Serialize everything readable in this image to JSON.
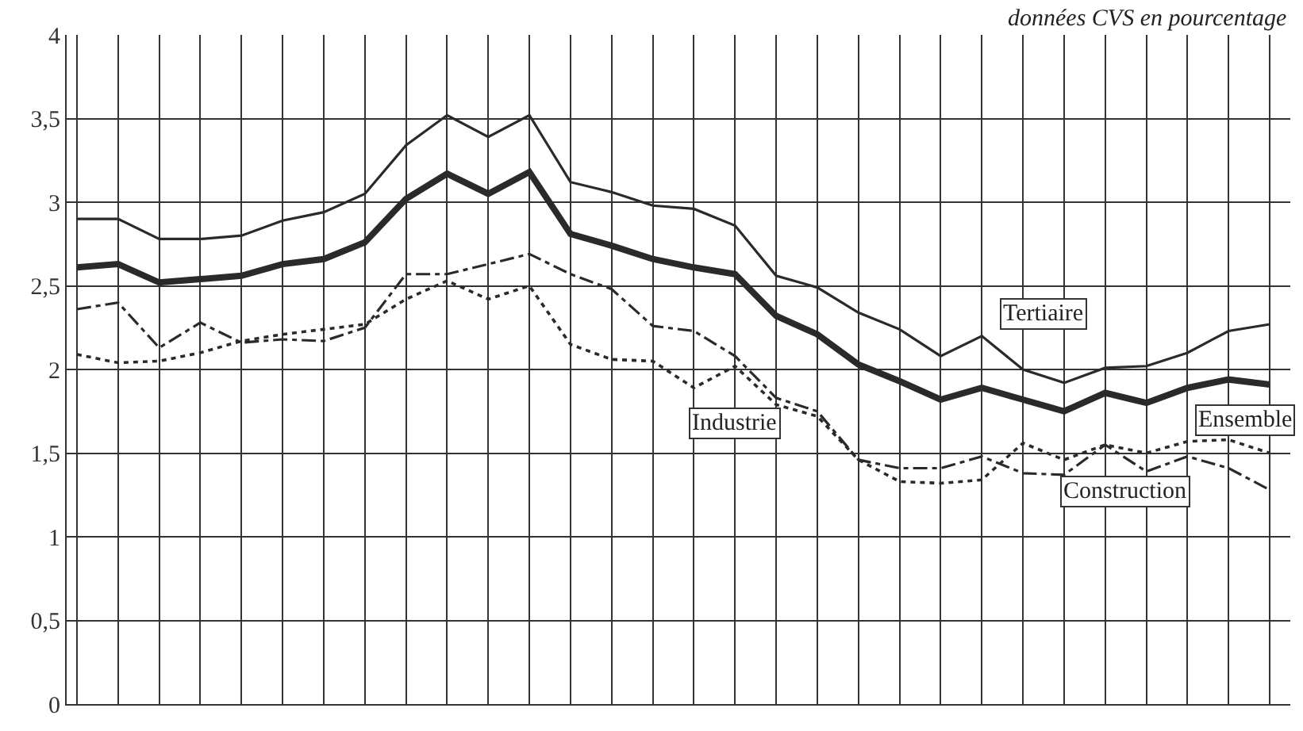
{
  "chart_data": {
    "type": "line",
    "subtitle": "données CVS en pourcentage",
    "categories": [
      null,
      null,
      null,
      null,
      null,
      null,
      null,
      null,
      null,
      null,
      null,
      null,
      null,
      null,
      null,
      null,
      null,
      null,
      null,
      null,
      null,
      null,
      null,
      null,
      null,
      null,
      null,
      null,
      null,
      null
    ],
    "series": [
      {
        "name": "Tertiaire",
        "color": "#2a2a2a",
        "line_style": "solid",
        "values": [
          2.9,
          2.9,
          2.78,
          2.78,
          2.8,
          2.89,
          2.94,
          3.05,
          3.34,
          3.52,
          3.39,
          3.52,
          3.12,
          3.06,
          2.98,
          2.96,
          2.86,
          2.56,
          2.49,
          2.34,
          2.24,
          2.08,
          2.2,
          2.0,
          1.92,
          2.01,
          2.02,
          2.1,
          2.23,
          2.27
        ]
      },
      {
        "name": "Ensemble",
        "color": "#2a2a2a",
        "line_style": "solid",
        "values": [
          2.61,
          2.63,
          2.52,
          2.54,
          2.56,
          2.63,
          2.66,
          2.76,
          3.02,
          3.17,
          3.05,
          3.18,
          2.81,
          2.74,
          2.66,
          2.61,
          2.57,
          2.32,
          2.21,
          2.03,
          1.93,
          1.82,
          1.89,
          1.82,
          1.75,
          1.86,
          1.8,
          1.89,
          1.94,
          1.91
        ]
      },
      {
        "name": "Industrie",
        "color": "#2a2a2a",
        "line_style": "dashed",
        "values": [
          2.36,
          2.4,
          2.13,
          2.28,
          2.16,
          2.18,
          2.17,
          2.25,
          2.57,
          2.57,
          2.63,
          2.69,
          2.57,
          2.48,
          2.26,
          2.23,
          2.08,
          1.83,
          1.75,
          1.46,
          1.41,
          1.41,
          1.48,
          1.38,
          1.37,
          1.55,
          1.39,
          1.48,
          1.41,
          1.28
        ]
      },
      {
        "name": "Construction",
        "color": "#2a2a2a",
        "line_style": "dotted",
        "values": [
          2.09,
          2.04,
          2.05,
          2.1,
          2.17,
          2.21,
          2.24,
          2.27,
          2.42,
          2.53,
          2.42,
          2.5,
          2.15,
          2.06,
          2.05,
          1.89,
          2.02,
          1.79,
          1.72,
          1.46,
          1.33,
          1.32,
          1.34,
          1.56,
          1.46,
          1.55,
          1.5,
          1.57,
          1.58,
          1.5
        ]
      }
    ],
    "ylim": [
      0,
      4
    ],
    "yticks": [
      0,
      {
        "value": 0.5,
        "label": "0,5"
      },
      1,
      {
        "value": 1.5,
        "label": "1,5"
      },
      2,
      {
        "value": 2.5,
        "label": "2,5"
      },
      3,
      {
        "value": 3.5,
        "label": "3,5"
      },
      4
    ],
    "grid": true,
    "legend": false,
    "tick_labels": "y",
    "marker": "none"
  }
}
